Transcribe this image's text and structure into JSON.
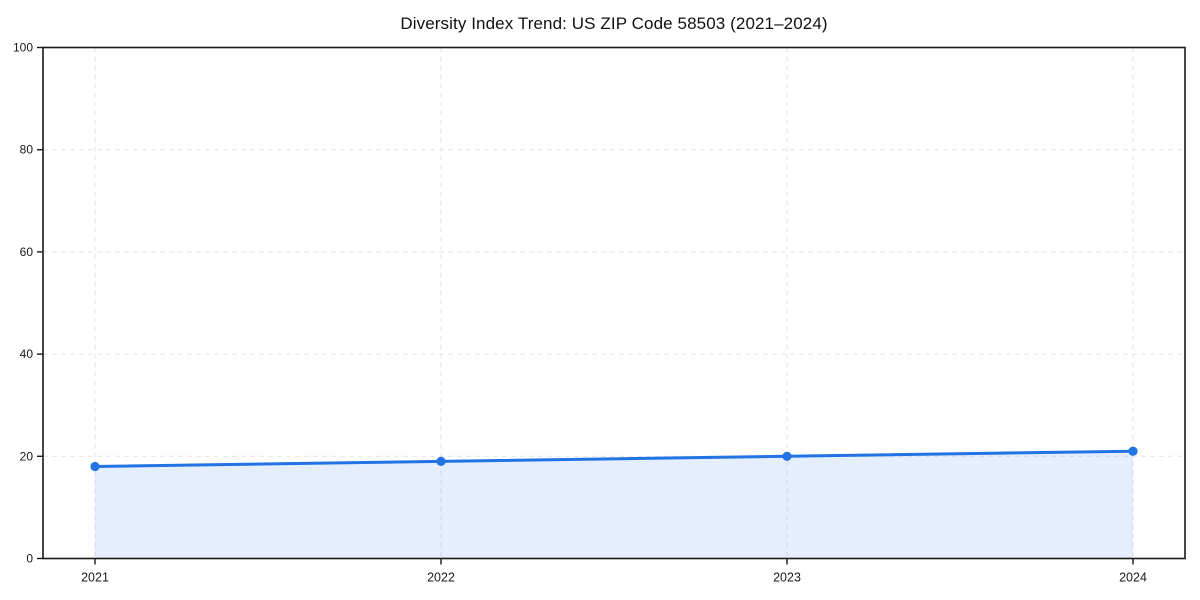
{
  "chart_data": {
    "type": "area",
    "title": "Diversity Index Trend: US ZIP Code 58503 (2021–2024)",
    "x": [
      2021,
      2022,
      2023,
      2024
    ],
    "xtick_labels": [
      "2021",
      "2022",
      "2023",
      "2024"
    ],
    "series": [
      {
        "name": "Diversity Index",
        "values": [
          18,
          19,
          20,
          21
        ]
      }
    ],
    "xlabel": "",
    "ylabel": "",
    "ylim": [
      0,
      100
    ],
    "yticks": [
      0,
      20,
      40,
      60,
      80,
      100
    ],
    "grid": "dashed",
    "legend": "none",
    "marker": "circle",
    "colors": {
      "line": "#2273e3",
      "marker": "#2273e3",
      "area_fill": "rgba(34, 115, 227, 0.12)",
      "gridline": "#e3e3e3",
      "axis": "#1a1a1a",
      "tick_label": "#1a1a1a",
      "title": "#111111",
      "background": "#ffffff"
    }
  }
}
